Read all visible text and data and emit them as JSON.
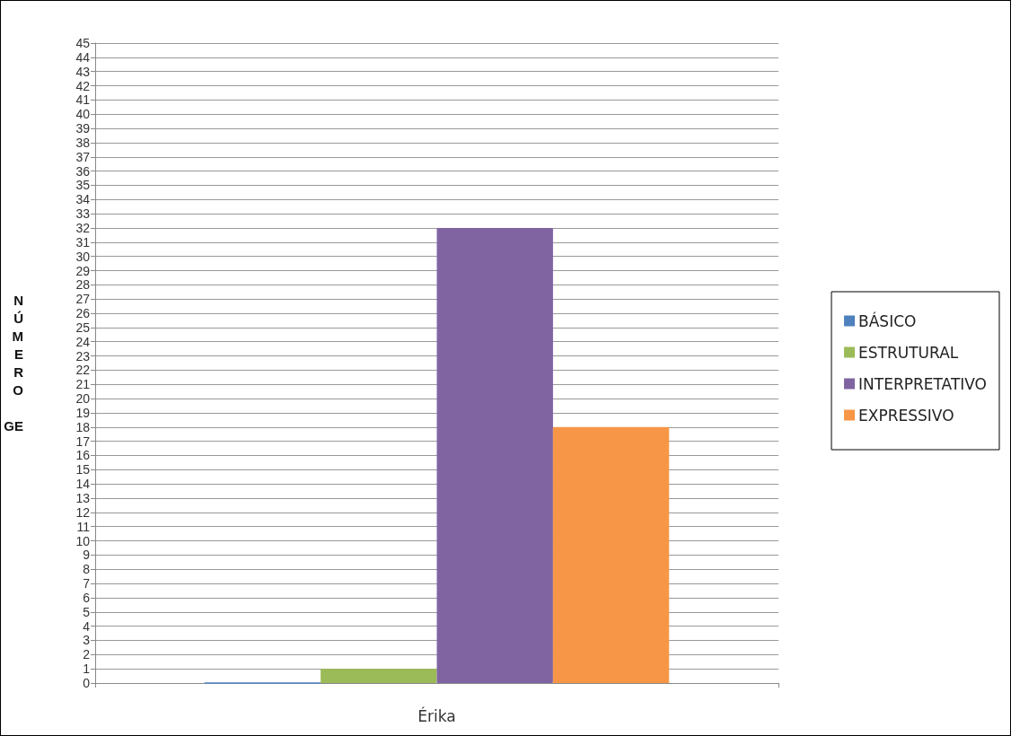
{
  "chart_data": {
    "type": "bar",
    "ylabel": "NÚMERO GE",
    "categories": [
      "Érika"
    ],
    "series": [
      {
        "name": "BÁSICO",
        "color": "#4f81bd",
        "values": [
          0
        ]
      },
      {
        "name": "ESTRUTURAL",
        "color": "#9bbb59",
        "values": [
          1
        ]
      },
      {
        "name": "INTERPRETATIVO",
        "color": "#8064a2",
        "values": [
          32
        ]
      },
      {
        "name": "EXPRESSIVO",
        "color": "#f79646",
        "values": [
          18
        ]
      }
    ],
    "ylim": [
      0,
      45
    ],
    "yticks": [
      0,
      1,
      2,
      3,
      4,
      5,
      6,
      7,
      8,
      9,
      10,
      11,
      12,
      13,
      14,
      15,
      16,
      17,
      18,
      19,
      20,
      21,
      22,
      23,
      24,
      25,
      26,
      27,
      28,
      29,
      30,
      31,
      32,
      33,
      34,
      35,
      36,
      37,
      38,
      39,
      40,
      41,
      42,
      43,
      44,
      45
    ],
    "grid": "y",
    "legend": "right"
  }
}
